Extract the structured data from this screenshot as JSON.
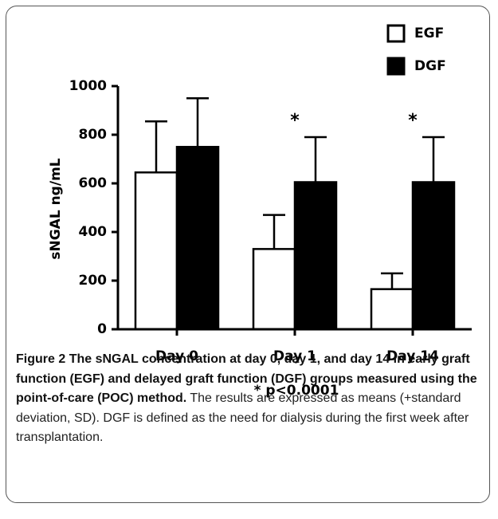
{
  "chart_data": {
    "type": "bar",
    "y_label": "sNGAL ng/mL",
    "categories": [
      "Day 0",
      "Day 1",
      "Day 14"
    ],
    "series": [
      {
        "name": "EGF",
        "color": "#ffffff",
        "values": [
          645,
          330,
          165
        ],
        "errors": [
          210,
          140,
          65
        ]
      },
      {
        "name": "DGF",
        "color": "#000000",
        "values": [
          750,
          605,
          605
        ],
        "errors": [
          200,
          185,
          185
        ]
      }
    ],
    "edgecolor": "#000000",
    "markers": [
      null,
      "*",
      "*"
    ],
    "note": "* p<0.0001",
    "ylim": [
      0,
      1000
    ],
    "yticks": [
      0,
      200,
      400,
      600,
      800,
      1000
    ],
    "grid": false,
    "legend": "upper right"
  },
  "caption": {
    "label": "Figure 2",
    "title": "The sNGAL concentration at day 0, day 1, and day 14 in early graft function (EGF) and delayed graft function (DGF) groups measured using the point-of-care (POC) method.",
    "text": "The results are expressed as means (+standard deviation, SD). DGF is defined as the need for dialysis during the first week after transplantation."
  }
}
